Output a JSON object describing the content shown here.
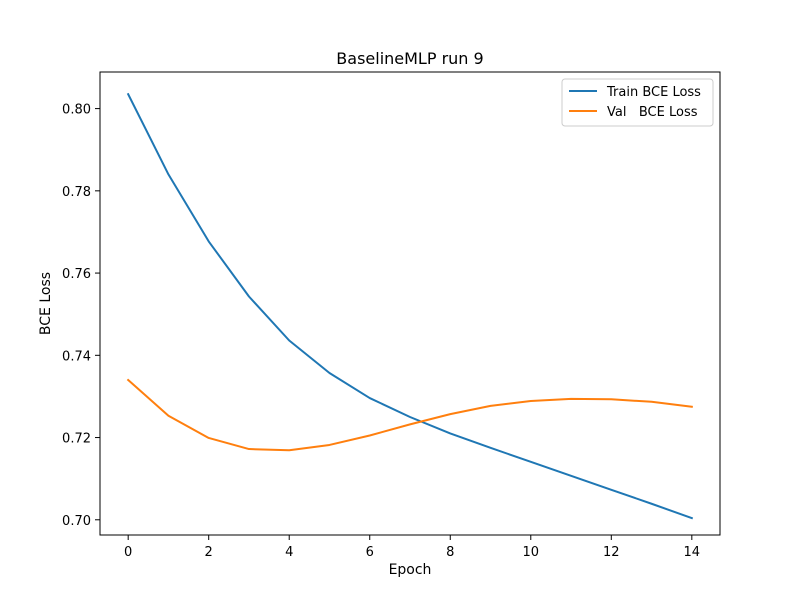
{
  "chart_data": {
    "type": "line",
    "title": "BaselineMLP run 9",
    "xlabel": "Epoch",
    "ylabel": "BCE Loss",
    "xlim": [
      -0.7,
      14.7
    ],
    "ylim": [
      0.6963,
      0.8089
    ],
    "xticks": [
      0,
      2,
      4,
      6,
      8,
      10,
      12,
      14
    ],
    "xtick_labels": [
      "0",
      "2",
      "4",
      "6",
      "8",
      "10",
      "12",
      "14"
    ],
    "yticks": [
      0.7,
      0.72,
      0.74,
      0.76,
      0.78,
      0.8
    ],
    "ytick_labels": [
      "0.70",
      "0.72",
      "0.74",
      "0.76",
      "0.78",
      "0.80"
    ],
    "grid": false,
    "legend_position": "top-right",
    "x": [
      0,
      1,
      2,
      3,
      4,
      5,
      6,
      7,
      8,
      9,
      10,
      11,
      12,
      13,
      14
    ],
    "series": [
      {
        "name": "Train BCE Loss",
        "color": "#1f77b4",
        "values": [
          0.8035,
          0.784,
          0.7677,
          0.7543,
          0.7436,
          0.7357,
          0.7296,
          0.725,
          0.721,
          0.7175,
          0.7141,
          0.7107,
          0.7073,
          0.7039,
          0.7004
        ]
      },
      {
        "name": "Val   BCE Loss",
        "color": "#ff7f0e",
        "values": [
          0.734,
          0.7253,
          0.7199,
          0.7172,
          0.7169,
          0.7182,
          0.7205,
          0.7232,
          0.7257,
          0.7277,
          0.7289,
          0.7294,
          0.7293,
          0.7287,
          0.7275
        ]
      }
    ]
  }
}
